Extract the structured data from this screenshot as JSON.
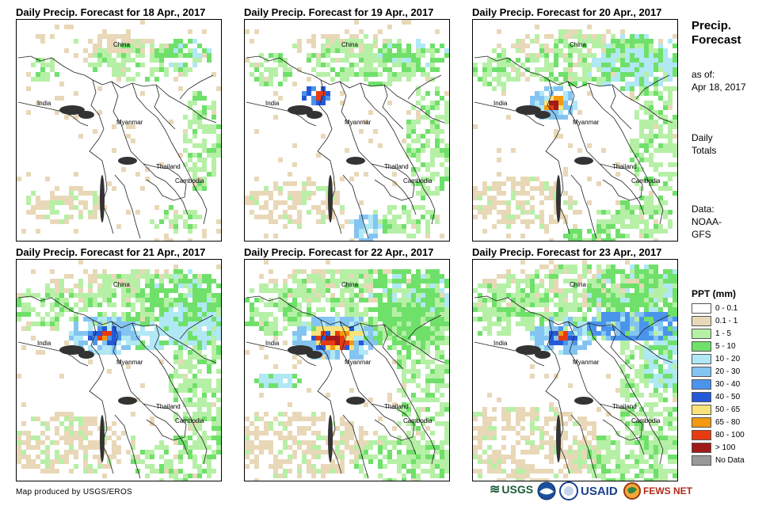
{
  "panels": [
    {
      "title": "Daily Precip. Forecast for 18 Apr., 2017",
      "intensity": 0
    },
    {
      "title": "Daily Precip. Forecast for 19 Apr., 2017",
      "intensity": 1
    },
    {
      "title": "Daily Precip. Forecast for 20 Apr., 2017",
      "intensity": 2
    },
    {
      "title": "Daily Precip. Forecast for 21 Apr., 2017",
      "intensity": 3
    },
    {
      "title": "Daily Precip. Forecast for 22 Apr., 2017",
      "intensity": 4
    },
    {
      "title": "Daily Precip. Forecast for 23 Apr., 2017",
      "intensity": 5
    }
  ],
  "countries": {
    "china": "China",
    "india": "India",
    "myanmar": "Myanmar",
    "thailand": "Thailand",
    "cambodia": "Cambodia"
  },
  "sidebar": {
    "title_line1": "Precip.",
    "title_line2": "Forecast",
    "asof_label": "as of:",
    "asof_date": "Apr 18, 2017",
    "daily_line1": "Daily",
    "daily_line2": "Totals",
    "data_line1": "Data:",
    "data_line2": "NOAA-",
    "data_line3": "GFS"
  },
  "legend": {
    "title": "PPT (mm)",
    "items": [
      {
        "label": "0 - 0.1",
        "color": "#ffffff"
      },
      {
        "label": "0.1 - 1",
        "color": "#e8d8b8"
      },
      {
        "label": "1 - 5",
        "color": "#b6f0a6"
      },
      {
        "label": "5 - 10",
        "color": "#6fe06a"
      },
      {
        "label": "10 - 20",
        "color": "#b0e8f4"
      },
      {
        "label": "20 - 30",
        "color": "#84c4f2"
      },
      {
        "label": "30 - 40",
        "color": "#4a94ec"
      },
      {
        "label": "40 - 50",
        "color": "#2458d8"
      },
      {
        "label": "50 - 65",
        "color": "#f8e27a"
      },
      {
        "label": "65 - 80",
        "color": "#f39a10"
      },
      {
        "label": "80 - 100",
        "color": "#e83a10"
      },
      {
        "label": "> 100",
        "color": "#a01a1a"
      },
      {
        "label": "No Data",
        "color": "#999999"
      }
    ]
  },
  "footer": {
    "credit": "Map produced by USGS/EROS",
    "usgs": "USGS",
    "usaid": "USAID",
    "fewsnet": "FEWS NET"
  }
}
